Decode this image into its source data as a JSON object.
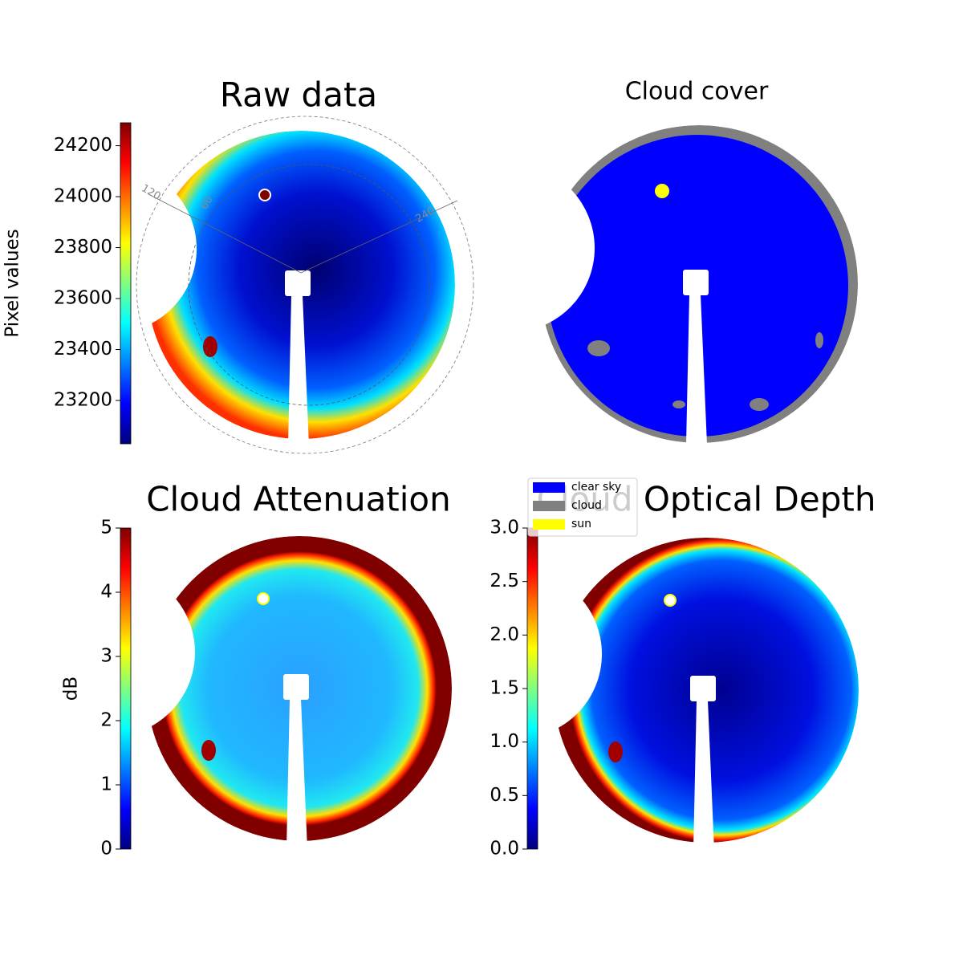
{
  "chart_data": [
    {
      "type": "image",
      "title": "Raw data",
      "colorbar": {
        "label": "Pixel values",
        "lim": [
          23030,
          24290
        ],
        "ticks": [
          23200,
          23400,
          23600,
          23800,
          24000,
          24200
        ]
      },
      "annotations": [
        "120",
        "60",
        "240"
      ]
    },
    {
      "type": "image",
      "title": "Cloud cover",
      "legend": [
        {
          "name": "clear sky",
          "color": "#0000ff"
        },
        {
          "name": "cloud",
          "color": "#808080"
        },
        {
          "name": "sun",
          "color": "#ffff00"
        }
      ]
    },
    {
      "type": "image",
      "title": "Cloud Attenuation",
      "colorbar": {
        "label": "dB",
        "lim": [
          0,
          5
        ],
        "ticks": [
          0,
          1,
          2,
          3,
          4,
          5
        ]
      }
    },
    {
      "type": "image",
      "title": "Cloud Optical Depth",
      "colorbar": {
        "label": null,
        "lim": [
          0,
          3
        ],
        "ticks": [
          {
            "value": 0,
            "label": "0.0"
          },
          {
            "value": 0.5,
            "label": "0.5"
          },
          {
            "value": 1,
            "label": "1.0"
          },
          {
            "value": 1.5,
            "label": "1.5"
          },
          {
            "value": 2,
            "label": "2.0"
          },
          {
            "value": 2.5,
            "label": "2.5"
          },
          {
            "value": 3,
            "label": "3.0"
          }
        ]
      }
    }
  ]
}
